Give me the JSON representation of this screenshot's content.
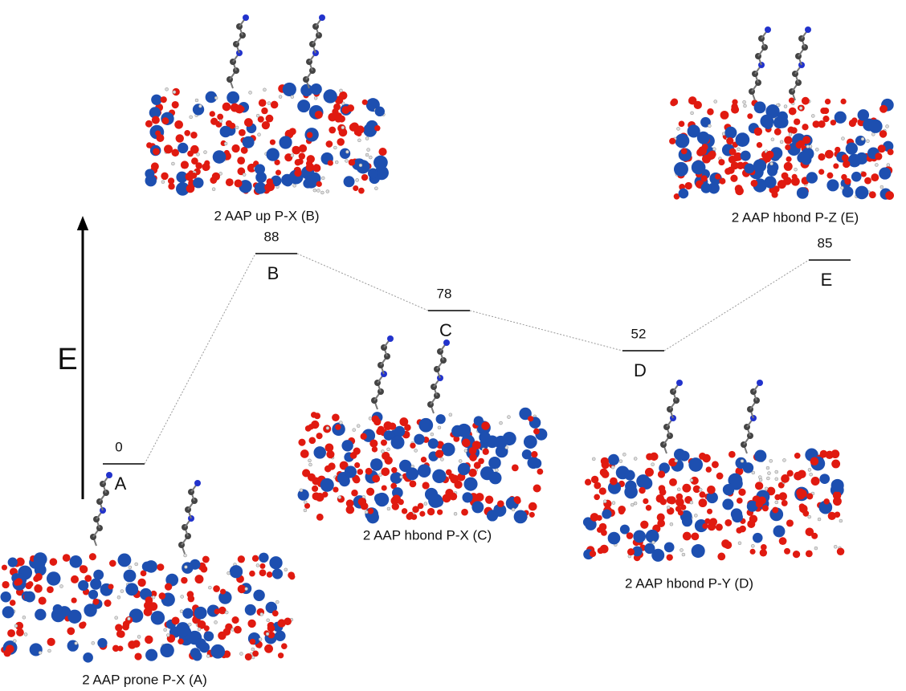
{
  "axis_label": "E",
  "levels": [
    {
      "energy": 0,
      "label": "A"
    },
    {
      "energy": 88,
      "label": "B"
    },
    {
      "energy": 78,
      "label": "C"
    },
    {
      "energy": 52,
      "label": "D"
    },
    {
      "energy": 85,
      "label": "E"
    }
  ],
  "structures": [
    {
      "caption": "2 AAP prone P-X (A)"
    },
    {
      "caption": "2 AAP up P-X (B)"
    },
    {
      "caption": "2 AAP hbond P-X (C)"
    },
    {
      "caption": "2 AAP hbond P-Y (D)"
    },
    {
      "caption": "2 AAP hbond P-Z (E)"
    }
  ]
}
